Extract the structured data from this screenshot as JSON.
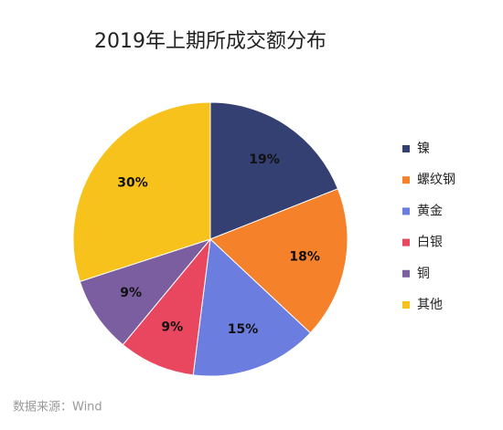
{
  "chart_data": {
    "type": "pie",
    "title": "2019年上期所成交额分布",
    "categories": [
      "镍",
      "螺纹钢",
      "黄金",
      "白银",
      "铜",
      "其他"
    ],
    "values": [
      19,
      18,
      15,
      9,
      9,
      30
    ],
    "value_labels": [
      "19%",
      "18%",
      "15%",
      "9%",
      "9%",
      "30%"
    ],
    "colors": [
      "#343f72",
      "#f5822b",
      "#6b7ee0",
      "#e8475f",
      "#7b5e9f",
      "#f7c21b"
    ],
    "legend": "right",
    "source": "数据来源：Wind"
  }
}
